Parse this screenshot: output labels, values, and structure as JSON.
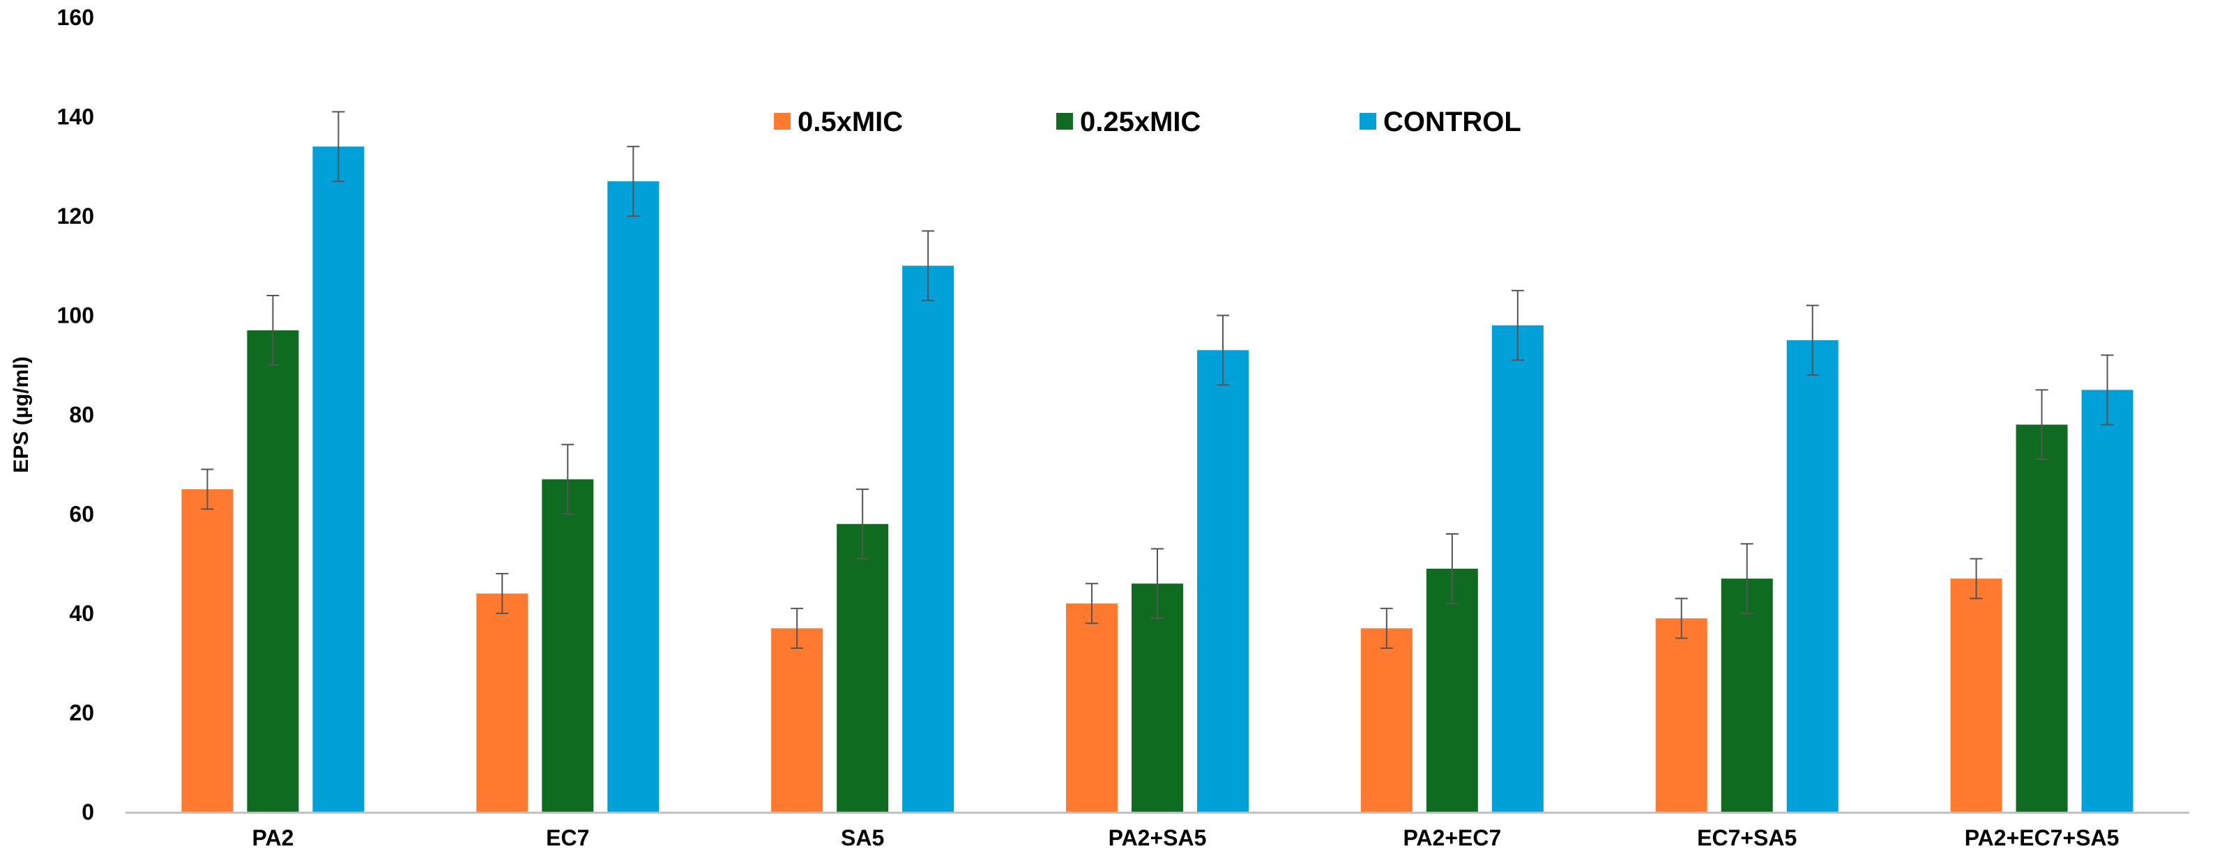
{
  "chart_data": {
    "type": "bar",
    "title": "",
    "xlabel": "",
    "ylabel": "EPS (µg/ml)",
    "ylim": [
      0,
      160
    ],
    "yticks": [
      0,
      20,
      40,
      60,
      80,
      100,
      120,
      140,
      160
    ],
    "grid": false,
    "legend_position": "top-center",
    "categories": [
      "PA2",
      "EC7",
      "SA5",
      "PA2+SA5",
      "PA2+EC7",
      "EC7+SA5",
      "PA2+EC7+SA5"
    ],
    "series": [
      {
        "name": "0.5xMIC",
        "color": "#FF7A2E",
        "values": [
          65,
          44,
          37,
          42,
          37,
          39,
          47
        ],
        "errors": [
          4,
          4,
          4,
          4,
          4,
          4,
          4
        ]
      },
      {
        "name": "0.25xMIC",
        "color": "#0E6B1F",
        "values": [
          97,
          67,
          58,
          46,
          49,
          47,
          78
        ],
        "errors": [
          7,
          7,
          7,
          7,
          7,
          7,
          7
        ]
      },
      {
        "name": "CONTROL",
        "color": "#00A0D8",
        "values": [
          134,
          127,
          110,
          93,
          98,
          95,
          85
        ],
        "errors": [
          7,
          7,
          7,
          7,
          7,
          7,
          7
        ]
      }
    ]
  }
}
